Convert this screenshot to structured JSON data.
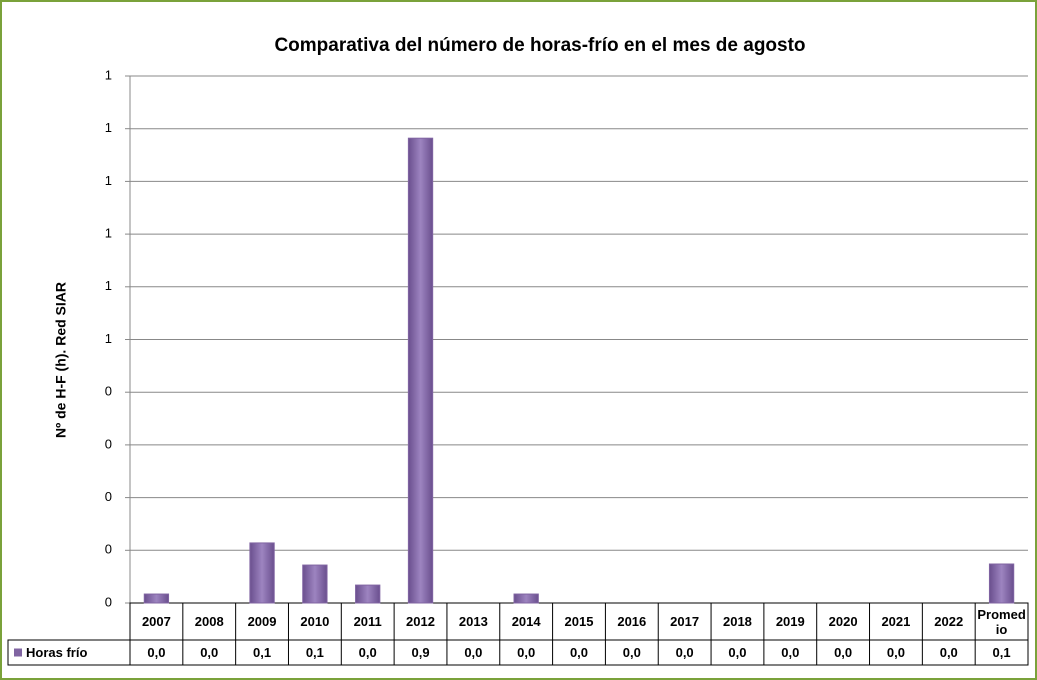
{
  "chart_data": {
    "type": "bar",
    "title": "Comparativa del número de horas-frío en el mes de agosto",
    "y_label": "Nº de H-F (h). Red SIAR",
    "categories": [
      "2007",
      "2008",
      "2009",
      "2010",
      "2011",
      "2012",
      "2013",
      "2014",
      "2015",
      "2016",
      "2017",
      "2018",
      "2019",
      "2020",
      "2021",
      "2022",
      "Promedio"
    ],
    "series": [
      {
        "name": "Horas frío",
        "color": "#8064a2",
        "values": [
          0.017,
          0,
          0.114,
          0.072,
          0.034,
          0.882,
          0,
          0.017,
          0,
          0,
          0,
          0,
          0,
          0,
          0,
          0,
          0.074
        ],
        "value_labels": [
          "0,0",
          "0,0",
          "0,1",
          "0,1",
          "0,0",
          "0,9",
          "0,0",
          "0,0",
          "0,0",
          "0,0",
          "0,0",
          "0,0",
          "0,0",
          "0,0",
          "0,0",
          "0,0",
          "0,1"
        ]
      }
    ],
    "ylim": [
      0,
      1
    ],
    "yticks": [
      0,
      {
        "value": 0.1,
        "label": "0"
      },
      {
        "value": 0.2,
        "label": "0"
      },
      {
        "value": 0.3,
        "label": "0"
      },
      {
        "value": 0.4,
        "label": "0"
      },
      {
        "value": 0.5,
        "label": "1"
      },
      {
        "value": 0.6,
        "label": "1"
      },
      {
        "value": 0.7,
        "label": "1"
      },
      {
        "value": 0.8,
        "label": "1"
      },
      {
        "value": 0.9,
        "label": "1"
      },
      1
    ],
    "grid": true
  }
}
